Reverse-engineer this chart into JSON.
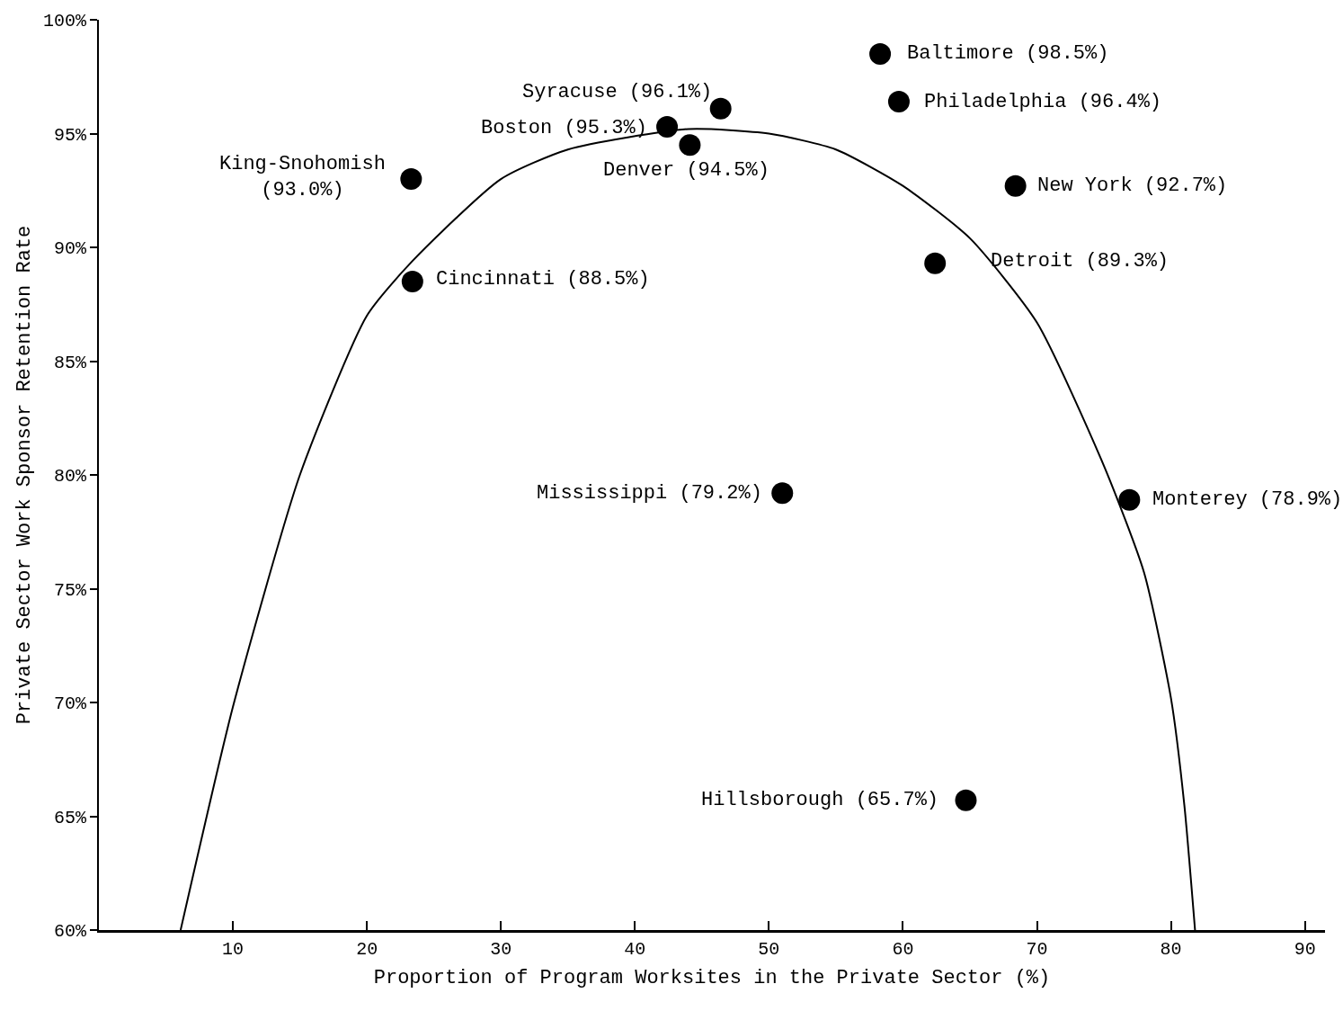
{
  "chart_data": {
    "type": "scatter",
    "xlabel": "Proportion of Program Worksites in the Private Sector (%)",
    "ylabel": "Private Sector Work Sponsor Retention Rate",
    "xlim": [
      0,
      91.5
    ],
    "xticks": [
      10,
      20,
      30,
      40,
      50,
      60,
      70,
      80,
      90
    ],
    "ylim": [
      60,
      100
    ],
    "yticks": [
      {
        "value": 60,
        "label": "60%"
      },
      {
        "value": 65,
        "label": "65%"
      },
      {
        "value": 70,
        "label": "70%"
      },
      {
        "value": 75,
        "label": "75%"
      },
      {
        "value": 80,
        "label": "80%"
      },
      {
        "value": 85,
        "label": "85%"
      },
      {
        "value": 90,
        "label": "90%"
      },
      {
        "value": 95,
        "label": "95%"
      },
      {
        "value": 100,
        "label": "100%"
      }
    ],
    "grid": false,
    "legend": false,
    "marker": "circle",
    "series": [
      {
        "type": "scatter",
        "color": "#000000",
        "x": [
          58.3,
          59.7,
          46.4,
          42.4,
          44.1,
          23.3,
          23.4,
          68.4,
          62.4,
          51.0,
          76.9,
          64.7
        ],
        "values": [
          98.5,
          96.4,
          96.1,
          95.3,
          94.5,
          93.0,
          88.5,
          92.7,
          89.3,
          79.2,
          78.9,
          65.7
        ]
      },
      {
        "type": "line",
        "color": "#000000",
        "marker": "none",
        "line_style": "solid",
        "x": [
          6.1,
          10,
          15,
          20,
          23.4,
          30,
          35,
          44,
          50,
          55,
          60,
          65,
          70,
          75,
          78,
          80,
          81,
          81.8
        ],
        "values": [
          60,
          69.8,
          80,
          87,
          89.4,
          93,
          94.3,
          95.2,
          95,
          94.3,
          92.7,
          90.4,
          86.7,
          80.4,
          75.7,
          70.2,
          65.5,
          60
        ]
      }
    ],
    "annotations": [
      {
        "text": "Baltimore (98.5%)",
        "x": 58.3,
        "y": 98.5
      },
      {
        "text": "Philadelphia (96.4%)",
        "x": 59.7,
        "y": 96.4
      },
      {
        "text": "Syracuse (96.1%)",
        "x": 46.4,
        "y": 96.1
      },
      {
        "text": "Boston (95.3%)",
        "x": 42.4,
        "y": 95.3
      },
      {
        "text": "Denver (94.5%)",
        "x": 44.1,
        "y": 94.5
      },
      {
        "text": "King-Snohomish\n(93.0%)",
        "x": 23.3,
        "y": 93.0
      },
      {
        "text": "Cincinnati (88.5%)",
        "x": 23.4,
        "y": 88.5
      },
      {
        "text": "New York (92.7%)",
        "x": 68.4,
        "y": 92.7
      },
      {
        "text": "Detroit (89.3%)",
        "x": 62.4,
        "y": 89.3
      },
      {
        "text": "Mississippi (79.2%)",
        "x": 51.0,
        "y": 79.2
      },
      {
        "text": "Monterey (78.9%)",
        "x": 76.9,
        "y": 78.9
      },
      {
        "text": "Hillsborough (65.7%)",
        "x": 64.7,
        "y": 65.7
      }
    ]
  }
}
